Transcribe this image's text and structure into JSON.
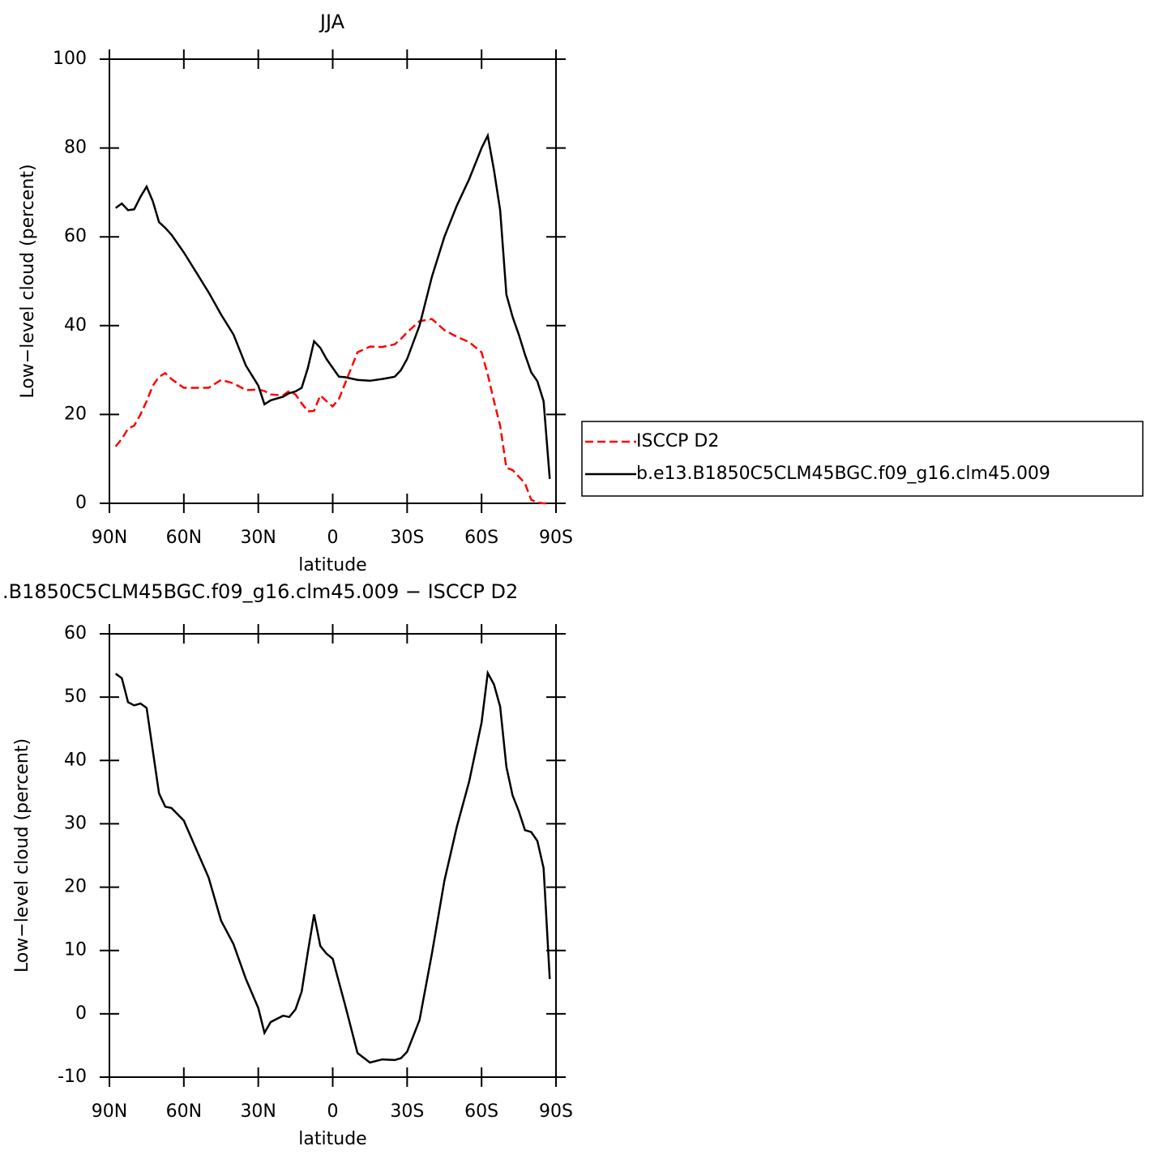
{
  "chart_data": [
    {
      "type": "line",
      "title": "JJA",
      "x_label": "latitude",
      "y_label": "Low−level cloud (percent)",
      "x": [
        87.5,
        85,
        82.5,
        80,
        77.5,
        75,
        72.5,
        70,
        67.5,
        65,
        60,
        55,
        50,
        45,
        40,
        35,
        30,
        27.5,
        25,
        20,
        17.5,
        15,
        12.5,
        10,
        7.5,
        5,
        2.5,
        0,
        -2.5,
        -5,
        -10,
        -15,
        -20,
        -25,
        -27.5,
        -30,
        -35,
        -40,
        -45,
        -50,
        -55,
        -60,
        -62.5,
        -65,
        -67.5,
        -70,
        -72.5,
        -75,
        -77.5,
        -80,
        -82.5,
        -85,
        -87.5
      ],
      "series": [
        {
          "name": "ISCCP D2",
          "color": "#ff0000",
          "style": "dashed",
          "values": [
            12.8,
            14.5,
            16.8,
            17.5,
            20,
            23,
            26.5,
            28.5,
            29.3,
            28,
            26,
            26,
            26,
            27.8,
            27,
            25.5,
            25.6,
            25.3,
            24.5,
            24.3,
            25.3,
            24.5,
            22.5,
            20.7,
            20.8,
            24.3,
            23,
            21.8,
            23.5,
            27,
            34,
            35.3,
            35.2,
            35.8,
            37,
            38.5,
            41,
            41.5,
            39,
            37.5,
            36.3,
            34,
            29,
            23,
            17.5,
            8,
            7.5,
            6,
            4.5,
            0.8,
            0.2,
            0,
            0
          ]
        },
        {
          "name": "b.e13.B1850C5CLM45BGC.f09_g16.clm45.009",
          "color": "#000000",
          "style": "solid",
          "values": [
            66.5,
            67.5,
            66,
            66.2,
            69,
            71.3,
            68,
            63.3,
            62,
            60.5,
            56.5,
            52,
            47.5,
            42.5,
            38,
            31,
            26.5,
            22.3,
            23.2,
            24,
            24.8,
            25.2,
            26,
            30.5,
            36.5,
            35,
            32.5,
            30.5,
            28.5,
            28.4,
            27.8,
            27.6,
            28,
            28.5,
            30,
            32.5,
            40,
            51,
            60,
            67,
            73,
            80,
            82.8,
            75,
            66,
            47,
            42,
            38,
            33.5,
            29.5,
            27.5,
            23,
            5.5
          ]
        }
      ],
      "xlim": [
        90,
        -90
      ],
      "xticks": [
        {
          "value": 90,
          "label": "90N"
        },
        {
          "value": 60,
          "label": "60N"
        },
        {
          "value": 30,
          "label": "30N"
        },
        0,
        {
          "value": -30,
          "label": "30S"
        },
        {
          "value": -60,
          "label": "60S"
        },
        {
          "value": -90,
          "label": "90S"
        }
      ],
      "ylim": [
        0,
        100
      ],
      "yticks": [
        0,
        20,
        40,
        60,
        80,
        100
      ],
      "legend": "right"
    },
    {
      "type": "line",
      "title": ".B1850C5CLM45BGC.f09_g16.clm45.009 − ISCCP D2",
      "x_label": "latitude",
      "y_label": "Low−level cloud (percent)",
      "x": [
        87.5,
        85,
        82.5,
        80,
        77.5,
        75,
        72.5,
        70,
        67.5,
        65,
        60,
        55,
        50,
        45,
        40,
        35,
        30,
        27.5,
        25,
        20,
        17.5,
        15,
        12.5,
        10,
        7.5,
        5,
        2.5,
        0,
        -2.5,
        -5,
        -10,
        -15,
        -20,
        -25,
        -27.5,
        -30,
        -35,
        -40,
        -45,
        -50,
        -55,
        -60,
        -62.5,
        -65,
        -67.5,
        -70,
        -72.5,
        -75,
        -77.5,
        -80,
        -82.5,
        -85,
        -87.5
      ],
      "series": [
        {
          "color": "#000000",
          "style": "solid",
          "values": [
            53.7,
            53,
            49.2,
            48.7,
            49,
            48.3,
            41.5,
            34.8,
            32.7,
            32.5,
            30.5,
            26,
            21.5,
            14.7,
            11,
            5.5,
            0.9,
            -3,
            -1.3,
            -0.3,
            -0.5,
            0.7,
            3.5,
            9.8,
            15.7,
            10.7,
            9.5,
            8.7,
            5,
            1.4,
            -6.2,
            -7.7,
            -7.2,
            -7.3,
            -7,
            -6,
            -1,
            9.5,
            21,
            29.5,
            36.7,
            46,
            53.8,
            52,
            48.5,
            39,
            34.5,
            32,
            29,
            28.7,
            27.3,
            23,
            5.5
          ]
        }
      ],
      "xlim": [
        90,
        -90
      ],
      "xticks": [
        {
          "value": 90,
          "label": "90N"
        },
        {
          "value": 60,
          "label": "60N"
        },
        {
          "value": 30,
          "label": "30N"
        },
        0,
        {
          "value": -30,
          "label": "30S"
        },
        {
          "value": -60,
          "label": "60S"
        },
        {
          "value": -90,
          "label": "90S"
        }
      ],
      "ylim": [
        -10,
        60
      ],
      "yticks": [
        -10,
        0,
        10,
        20,
        30,
        40,
        50,
        60
      ]
    }
  ]
}
